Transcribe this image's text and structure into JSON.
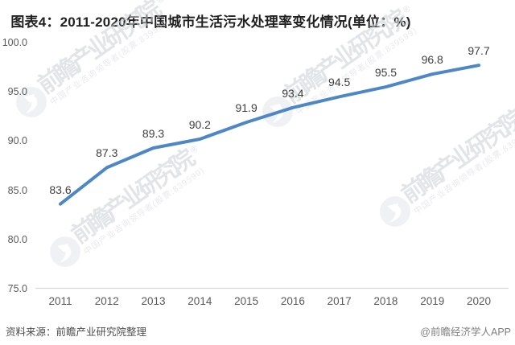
{
  "chart_data": {
    "type": "line",
    "title": "图表4：2011-2020年中国城市生活污水处理率变化情况(单位：%)",
    "categories": [
      "2011",
      "2012",
      "2013",
      "2014",
      "2015",
      "2016",
      "2017",
      "2018",
      "2019",
      "2020"
    ],
    "values": [
      83.6,
      87.3,
      89.3,
      90.2,
      91.9,
      93.4,
      94.5,
      95.5,
      96.8,
      97.7
    ],
    "data_labels": [
      "83.6",
      "87.3",
      "89.3",
      "90.2",
      "91.9",
      "93.4",
      "94.5",
      "95.5",
      "96.8",
      "97.7"
    ],
    "ylim": [
      75.0,
      100.0
    ],
    "yticks": [
      "100.0",
      "95.0",
      "90.0",
      "85.0",
      "80.0",
      "75.0"
    ],
    "grid": false,
    "legend": "none",
    "line_color": "#4e87c5"
  },
  "watermark": {
    "brand": "前瞻产业研究院",
    "registered_mark": "®",
    "subtitle": "中国产业咨询领导者(股票:839599)",
    "logo": "qianzhan-logo"
  },
  "footer": {
    "source": "资料来源：前瞻产业研究院整理",
    "credit": "@前瞻经济学人APP"
  },
  "colors": {
    "line": "#4e87c5",
    "axis_line": "#d9d9d9",
    "tick_text": "#595959",
    "data_label_text": "#3f3f3f",
    "watermark_text": "#ccd1d7"
  }
}
